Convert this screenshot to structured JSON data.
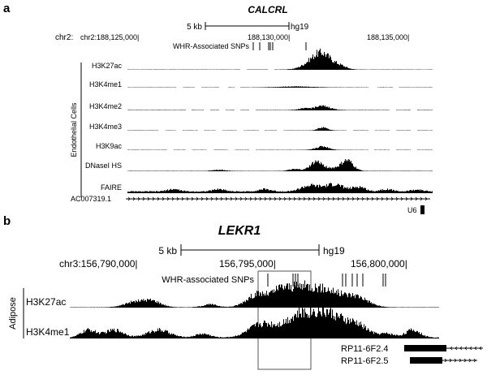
{
  "panels": [
    {
      "id": "a",
      "label": "a",
      "gene": "CALCRL",
      "scale": {
        "label": "5 kb",
        "assembly": "hg19"
      },
      "coord_label": "chr2:",
      "coordinates": [
        "chr2:188,125,000|",
        "188,130,000|",
        "188,135,000|"
      ],
      "snp_label": "WHR-Associated SNPs",
      "group_label": "Endothelial Cells",
      "tracks": [
        {
          "label": "H3K27ac",
          "peaks": [
            [
              0.64,
              13,
              0.03
            ],
            [
              0.6,
              4,
              0.03
            ],
            [
              0.7,
              2.5,
              0.02
            ]
          ],
          "base": 0.25,
          "gaps": [
            [
              0.37,
              0.39
            ],
            [
              0.46,
              0.48
            ]
          ]
        },
        {
          "label": "H3K4me1",
          "peaks": [
            [
              0.55,
              0.8,
              0.05
            ]
          ],
          "base": 0.25,
          "gaps": [
            [
              0.16,
              0.18
            ],
            [
              0.22,
              0.24
            ],
            [
              0.3,
              0.33
            ],
            [
              0.35,
              0.37
            ],
            [
              0.79,
              0.82
            ],
            [
              0.87,
              0.89
            ]
          ]
        },
        {
          "label": "H3K4me2",
          "peaks": [
            [
              0.64,
              3.5,
              0.025
            ],
            [
              0.58,
              1.3,
              0.02
            ]
          ],
          "base": 0.3,
          "gaps": [
            [
              0.19,
              0.21
            ],
            [
              0.25,
              0.27
            ],
            [
              0.3,
              0.32
            ],
            [
              0.35,
              0.37
            ],
            [
              0.4,
              0.42
            ],
            [
              0.86,
              0.88
            ],
            [
              0.93,
              0.95
            ]
          ]
        },
        {
          "label": "H3K4me3",
          "peaks": [
            [
              0.64,
              2.5,
              0.015
            ]
          ],
          "base": 0.25,
          "gaps": [
            [
              0.1,
              0.12
            ],
            [
              0.16,
              0.18
            ],
            [
              0.23,
              0.25
            ],
            [
              0.29,
              0.31
            ],
            [
              0.36,
              0.38
            ],
            [
              0.43,
              0.45
            ],
            [
              0.49,
              0.51
            ],
            [
              0.72,
              0.74
            ],
            [
              0.79,
              0.81
            ],
            [
              0.86,
              0.88
            ],
            [
              0.93,
              0.95
            ]
          ]
        },
        {
          "label": "H3K9ac",
          "peaks": [
            [
              0.64,
              3,
              0.02
            ]
          ],
          "base": 0.25,
          "gaps": [
            [
              0.13,
              0.15
            ],
            [
              0.19,
              0.21
            ],
            [
              0.26,
              0.28
            ],
            [
              0.33,
              0.35
            ],
            [
              0.4,
              0.42
            ],
            [
              0.79,
              0.81
            ],
            [
              0.86,
              0.88
            ],
            [
              0.93,
              0.95
            ]
          ]
        },
        {
          "label": "DNaseI HS",
          "peaks": [
            [
              0.62,
              8,
              0.02
            ],
            [
              0.72,
              9,
              0.02
            ],
            [
              0.67,
              2,
              0.02
            ],
            [
              0.3,
              1,
              0.02
            ],
            [
              0.55,
              1.5,
              0.02
            ]
          ],
          "base": 0.3,
          "gaps": []
        },
        {
          "label": "FAIRE",
          "peaks": [
            [
              0.6,
              5,
              0.03
            ],
            [
              0.68,
              6,
              0.03
            ],
            [
              0.76,
              4,
              0.02
            ],
            [
              0.45,
              2,
              0.02
            ],
            [
              0.3,
              2,
              0.02
            ],
            [
              0.85,
              2,
              0.02
            ],
            [
              0.15,
              2,
              0.02
            ],
            [
              0.95,
              1.5,
              0.02
            ]
          ],
          "base": 1.5,
          "gaps": []
        }
      ],
      "genes": [
        {
          "name": "AC007319.1",
          "strand": "+"
        },
        {
          "name": "U6"
        }
      ]
    },
    {
      "id": "b",
      "label": "b",
      "gene": "LEKR1",
      "scale": {
        "label": "5 kb",
        "assembly": "hg19"
      },
      "coordinates": [
        "chr3:156,790,000|",
        "156,795,000|",
        "156,800,000|"
      ],
      "snp_label": "WHR-associated SNPs",
      "group_label": "Adipose",
      "tracks": [
        {
          "label": "H3K27ac",
          "peaks": [
            [
              0.17,
              2.5,
              0.025
            ],
            [
              0.22,
              3.5,
              0.025
            ],
            [
              0.51,
              7,
              0.03
            ],
            [
              0.62,
              10,
              0.04
            ],
            [
              0.7,
              8,
              0.04
            ],
            [
              0.78,
              5,
              0.03
            ],
            [
              0.57,
              5,
              0.02
            ],
            [
              0.38,
              1.5,
              0.02
            ]
          ],
          "base": 0.2,
          "gaps": []
        },
        {
          "label": "H3K4me1",
          "peaks": [
            [
              0.05,
              4,
              0.02
            ],
            [
              0.12,
              4,
              0.025
            ],
            [
              0.24,
              4,
              0.03
            ],
            [
              0.52,
              7,
              0.035
            ],
            [
              0.62,
              11,
              0.04
            ],
            [
              0.7,
              12,
              0.04
            ],
            [
              0.78,
              6,
              0.03
            ],
            [
              0.93,
              4,
              0.02
            ],
            [
              1.06,
              13,
              0.02
            ],
            [
              0.36,
              2,
              0.02
            ],
            [
              0.86,
              2,
              0.02
            ]
          ],
          "base": 0.5,
          "gaps": []
        }
      ],
      "genes": [
        {
          "name": "RP11-6F2.4",
          "strand": "-"
        },
        {
          "name": "RP11-6F2.5",
          "strand": "+"
        }
      ]
    }
  ]
}
